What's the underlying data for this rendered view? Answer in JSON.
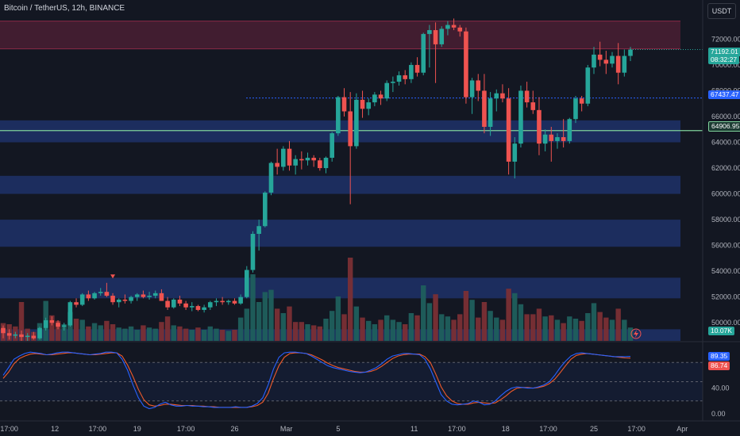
{
  "header": {
    "symbol_title": "Bitcoin / TetherUS, 12h, BINANCE",
    "currency_button": "USDT"
  },
  "price_tags": {
    "last_price": "71192.01",
    "countdown": "08:32:27",
    "dotted_level": "67437.47",
    "horizontal_level": "64906.95",
    "volume": "10.07K"
  },
  "oscillator_tags": {
    "k_value": "89.35",
    "d_value": "86.74"
  },
  "colors": {
    "background": "#131722",
    "up": "#26a69a",
    "down": "#ef5350",
    "zone_blue": "#1e3168",
    "zone_red": "#4a1f33",
    "level_line": "#7fd29b",
    "k_line": "#2962ff",
    "d_line": "#f05a2a"
  },
  "chart_data": {
    "type": "candlestick",
    "price_axis": {
      "ticks": [
        "72000.00",
        "70000.00",
        "68000.00",
        "66000.00",
        "64000.00",
        "62000.00",
        "60000.00",
        "58000.00",
        "56000.00",
        "54000.00",
        "52000.00",
        "50000.00"
      ],
      "ylim": [
        48600,
        73500
      ]
    },
    "time_axis": [
      "17:00",
      "12",
      "17:00",
      "19",
      "17:00",
      "26",
      "Mar",
      "5",
      "11",
      "17:00",
      "18",
      "17:00",
      "25",
      "17:00",
      "Apr"
    ],
    "oscillator_axis": [
      "40.00",
      "0.00"
    ],
    "zones": [
      {
        "kind": "resistance",
        "from": 71250,
        "to": 73400
      },
      {
        "kind": "support",
        "from": 64000,
        "to": 65700
      },
      {
        "kind": "support",
        "from": 60000,
        "to": 61400
      },
      {
        "kind": "support",
        "from": 55900,
        "to": 58000
      },
      {
        "kind": "support",
        "from": 51900,
        "to": 53500
      },
      {
        "kind": "support",
        "from": 48600,
        "to": 49500
      }
    ],
    "levels": [
      {
        "kind": "dotted",
        "value": 67437.47
      },
      {
        "kind": "solid",
        "value": 64906.95
      }
    ],
    "marker": {
      "kind": "down-triangle",
      "value": 53500
    },
    "candles": [
      [
        49600,
        49800,
        48800,
        49200
      ],
      [
        49200,
        49500,
        48700,
        49000
      ],
      [
        49000,
        49300,
        48800,
        49100
      ],
      [
        49100,
        49400,
        48600,
        48900
      ],
      [
        48900,
        49200,
        48600,
        49000
      ],
      [
        49000,
        49300,
        48700,
        48800
      ],
      [
        48800,
        49700,
        48700,
        49600
      ],
      [
        49600,
        50400,
        49400,
        50200
      ],
      [
        50200,
        50500,
        49800,
        50000
      ],
      [
        50000,
        50200,
        49500,
        49700
      ],
      [
        49700,
        50000,
        49400,
        49800
      ],
      [
        49800,
        51700,
        49700,
        51600
      ],
      [
        51600,
        51900,
        51200,
        51400
      ],
      [
        51400,
        52300,
        51300,
        52200
      ],
      [
        52200,
        52500,
        51700,
        51900
      ],
      [
        51900,
        52400,
        51800,
        52300
      ],
      [
        52300,
        52700,
        52100,
        52400
      ],
      [
        52400,
        53100,
        52000,
        52100
      ],
      [
        52100,
        52300,
        51400,
        51600
      ],
      [
        51600,
        51900,
        51200,
        51800
      ],
      [
        51800,
        52200,
        51500,
        51700
      ],
      [
        51700,
        52100,
        51500,
        52000
      ],
      [
        52000,
        52300,
        51700,
        52200
      ],
      [
        52200,
        52500,
        51900,
        52000
      ],
      [
        52000,
        52400,
        51800,
        52100
      ],
      [
        52100,
        52500,
        51900,
        52300
      ],
      [
        52300,
        52600,
        51700,
        51700
      ],
      [
        51700,
        52000,
        51000,
        51200
      ],
      [
        51200,
        51900,
        51100,
        51800
      ],
      [
        51800,
        52100,
        51300,
        51500
      ],
      [
        51500,
        51700,
        51000,
        51200
      ],
      [
        51200,
        51600,
        50900,
        51300
      ],
      [
        51300,
        51400,
        50900,
        51000
      ],
      [
        51000,
        51400,
        50800,
        51200
      ],
      [
        51200,
        51700,
        51000,
        51600
      ],
      [
        51600,
        51900,
        51300,
        51700
      ],
      [
        51700,
        52000,
        51400,
        51600
      ],
      [
        51600,
        51800,
        51400,
        51700
      ],
      [
        51700,
        51900,
        51400,
        51500
      ],
      [
        51500,
        52200,
        51400,
        52000
      ],
      [
        52000,
        54400,
        51900,
        54100
      ],
      [
        54100,
        57100,
        53900,
        56900
      ],
      [
        56900,
        58000,
        55600,
        57500
      ],
      [
        57500,
        60200,
        57400,
        60100
      ],
      [
        60100,
        62500,
        59900,
        62400
      ],
      [
        62400,
        63500,
        61500,
        62100
      ],
      [
        62100,
        63700,
        61800,
        63500
      ],
      [
        63500,
        64100,
        61800,
        62200
      ],
      [
        62200,
        63000,
        61500,
        62700
      ],
      [
        62700,
        63300,
        61900,
        62600
      ],
      [
        62600,
        63200,
        62200,
        62800
      ],
      [
        62800,
        63000,
        62100,
        62600
      ],
      [
        62600,
        62800,
        61800,
        62000
      ],
      [
        62000,
        62900,
        61600,
        62800
      ],
      [
        62800,
        64800,
        62500,
        64700
      ],
      [
        64700,
        67600,
        64500,
        67500
      ],
      [
        67500,
        68200,
        66000,
        66400
      ],
      [
        66400,
        67900,
        59200,
        63700
      ],
      [
        63700,
        67800,
        63500,
        67300
      ],
      [
        67300,
        68000,
        65900,
        66600
      ],
      [
        66600,
        67400,
        66100,
        67100
      ],
      [
        67100,
        67900,
        66800,
        67700
      ],
      [
        67700,
        68000,
        66900,
        67400
      ],
      [
        67400,
        68800,
        67200,
        68600
      ],
      [
        68600,
        69100,
        67900,
        68700
      ],
      [
        68700,
        69500,
        68400,
        69200
      ],
      [
        69200,
        69600,
        68500,
        68900
      ],
      [
        68900,
        70200,
        68600,
        70000
      ],
      [
        70000,
        70600,
        69100,
        69400
      ],
      [
        69400,
        72500,
        69200,
        72400
      ],
      [
        72400,
        73100,
        69800,
        72700
      ],
      [
        72700,
        73300,
        68600,
        71600
      ],
      [
        71600,
        73000,
        71400,
        72800
      ],
      [
        72800,
        73400,
        72300,
        73100
      ],
      [
        73100,
        73600,
        72700,
        72900
      ],
      [
        72900,
        73100,
        72200,
        72600
      ],
      [
        72600,
        72900,
        67000,
        67500
      ],
      [
        67500,
        69000,
        66200,
        68800
      ],
      [
        68800,
        69300,
        67200,
        68000
      ],
      [
        68000,
        69300,
        64700,
        65200
      ],
      [
        65200,
        67900,
        64500,
        67400
      ],
      [
        67400,
        68100,
        66400,
        67800
      ],
      [
        67800,
        68500,
        67100,
        67400
      ],
      [
        67400,
        68200,
        61500,
        62500
      ],
      [
        62500,
        64400,
        61200,
        63900
      ],
      [
        63900,
        68400,
        63600,
        68000
      ],
      [
        68000,
        68700,
        66700,
        67100
      ],
      [
        67100,
        68000,
        66200,
        66500
      ],
      [
        66500,
        67500,
        63000,
        63900
      ],
      [
        63900,
        65000,
        63300,
        64600
      ],
      [
        64600,
        65200,
        62500,
        64100
      ],
      [
        64100,
        64700,
        63500,
        64400
      ],
      [
        64400,
        65800,
        63600,
        64100
      ],
      [
        64100,
        65900,
        63900,
        65800
      ],
      [
        65800,
        67600,
        65500,
        67400
      ],
      [
        67400,
        67600,
        66400,
        67000
      ],
      [
        67000,
        70000,
        66800,
        69800
      ],
      [
        69800,
        71400,
        69300,
        70800
      ],
      [
        70800,
        71800,
        69900,
        70400
      ],
      [
        70400,
        71100,
        69300,
        70100
      ],
      [
        70100,
        71000,
        69800,
        70700
      ],
      [
        70700,
        71700,
        68500,
        69400
      ],
      [
        69400,
        71200,
        69100,
        70700
      ],
      [
        70700,
        71400,
        70300,
        71192
      ]
    ],
    "volume": [
      [
        1.6,
        0
      ],
      [
        1.5,
        0
      ],
      [
        1.3,
        0
      ],
      [
        3.5,
        0
      ],
      [
        1.1,
        0
      ],
      [
        0.8,
        0
      ],
      [
        1.6,
        1
      ],
      [
        3.6,
        1
      ],
      [
        2.3,
        0
      ],
      [
        1.8,
        0
      ],
      [
        1.5,
        1
      ],
      [
        2.6,
        1
      ],
      [
        2.0,
        0
      ],
      [
        1.9,
        1
      ],
      [
        1.3,
        0
      ],
      [
        1.6,
        1
      ],
      [
        1.4,
        1
      ],
      [
        1.8,
        0
      ],
      [
        1.5,
        0
      ],
      [
        1.2,
        1
      ],
      [
        1.1,
        1
      ],
      [
        1.3,
        1
      ],
      [
        1.0,
        1
      ],
      [
        1.4,
        0
      ],
      [
        1.2,
        1
      ],
      [
        1.1,
        1
      ],
      [
        1.7,
        0
      ],
      [
        2.2,
        0
      ],
      [
        1.4,
        1
      ],
      [
        1.3,
        0
      ],
      [
        1.1,
        0
      ],
      [
        1.0,
        1
      ],
      [
        1.2,
        0
      ],
      [
        1.0,
        1
      ],
      [
        1.3,
        1
      ],
      [
        1.1,
        1
      ],
      [
        1.0,
        0
      ],
      [
        0.9,
        1
      ],
      [
        1.0,
        0
      ],
      [
        2.1,
        1
      ],
      [
        2.9,
        1
      ],
      [
        6.0,
        1
      ],
      [
        3.5,
        1
      ],
      [
        4.4,
        1
      ],
      [
        4.6,
        1
      ],
      [
        2.9,
        0
      ],
      [
        2.5,
        1
      ],
      [
        3.1,
        0
      ],
      [
        1.7,
        0
      ],
      [
        1.7,
        0
      ],
      [
        1.5,
        1
      ],
      [
        1.4,
        0
      ],
      [
        1.3,
        0
      ],
      [
        2.0,
        1
      ],
      [
        2.7,
        1
      ],
      [
        4.0,
        1
      ],
      [
        2.4,
        0
      ],
      [
        7.5,
        0
      ],
      [
        3.1,
        1
      ],
      [
        2.1,
        0
      ],
      [
        1.8,
        1
      ],
      [
        1.5,
        1
      ],
      [
        1.9,
        0
      ],
      [
        2.3,
        1
      ],
      [
        1.9,
        1
      ],
      [
        1.7,
        1
      ],
      [
        1.5,
        0
      ],
      [
        2.5,
        1
      ],
      [
        2.3,
        0
      ],
      [
        5.0,
        1
      ],
      [
        3.4,
        1
      ],
      [
        4.2,
        0
      ],
      [
        2.4,
        1
      ],
      [
        2.2,
        1
      ],
      [
        1.9,
        0
      ],
      [
        2.4,
        0
      ],
      [
        4.5,
        0
      ],
      [
        3.7,
        1
      ],
      [
        2.1,
        0
      ],
      [
        3.5,
        0
      ],
      [
        2.7,
        1
      ],
      [
        2.1,
        1
      ],
      [
        1.9,
        0
      ],
      [
        4.7,
        0
      ],
      [
        4.3,
        1
      ],
      [
        3.3,
        1
      ],
      [
        2.4,
        0
      ],
      [
        2.4,
        0
      ],
      [
        2.9,
        0
      ],
      [
        2.2,
        1
      ],
      [
        2.3,
        0
      ],
      [
        1.9,
        1
      ],
      [
        1.6,
        0
      ],
      [
        2.2,
        1
      ],
      [
        2.0,
        1
      ],
      [
        1.8,
        0
      ],
      [
        2.5,
        1
      ],
      [
        3.4,
        1
      ],
      [
        2.6,
        0
      ],
      [
        2.1,
        0
      ],
      [
        1.9,
        1
      ],
      [
        2.9,
        0
      ],
      [
        1.9,
        1
      ],
      [
        1.2,
        1
      ]
    ],
    "stoch_k": [
      60,
      72,
      85,
      90,
      94,
      96,
      95,
      94,
      92,
      93,
      95,
      96,
      96,
      95,
      94,
      93,
      92,
      93,
      94,
      96,
      96,
      95,
      85,
      68,
      45,
      25,
      12,
      8,
      10,
      15,
      18,
      14,
      12,
      12,
      13,
      12,
      12,
      11,
      11,
      10,
      10,
      10,
      10,
      11,
      10,
      10,
      12,
      16,
      25,
      45,
      70,
      88,
      95,
      96,
      96,
      95,
      94,
      90,
      85,
      80,
      75,
      72,
      70,
      68,
      66,
      65,
      64,
      65,
      68,
      72,
      78,
      85,
      90,
      92,
      94,
      94,
      93,
      92,
      85,
      70,
      50,
      30,
      20,
      15,
      14,
      15,
      16,
      20,
      18,
      14,
      15,
      20,
      28,
      35,
      40,
      42,
      41,
      40,
      40,
      42,
      45,
      50,
      60,
      72,
      82,
      90,
      94,
      95,
      94,
      93,
      92,
      91,
      90,
      89,
      89,
      89,
      89.35
    ],
    "stoch_d": [
      55,
      65,
      78,
      86,
      90,
      93,
      94,
      93,
      92,
      92,
      93,
      94,
      95,
      95,
      94,
      93,
      92,
      92,
      93,
      94,
      95,
      95,
      90,
      76,
      58,
      38,
      22,
      14,
      12,
      13,
      15,
      15,
      14,
      13,
      13,
      13,
      12,
      12,
      11,
      11,
      10,
      10,
      10,
      10,
      10,
      10,
      11,
      13,
      18,
      32,
      55,
      75,
      88,
      94,
      95,
      95,
      94,
      92,
      88,
      84,
      79,
      75,
      72,
      70,
      68,
      66,
      65,
      65,
      66,
      69,
      74,
      80,
      86,
      90,
      92,
      93,
      93,
      93,
      89,
      80,
      62,
      42,
      28,
      20,
      16,
      15,
      15,
      17,
      18,
      17,
      16,
      17,
      22,
      28,
      35,
      40,
      41,
      41,
      40,
      41,
      43,
      47,
      54,
      64,
      75,
      85,
      91,
      93,
      94,
      93,
      92,
      91,
      90,
      89,
      88,
      87,
      86.74
    ]
  }
}
